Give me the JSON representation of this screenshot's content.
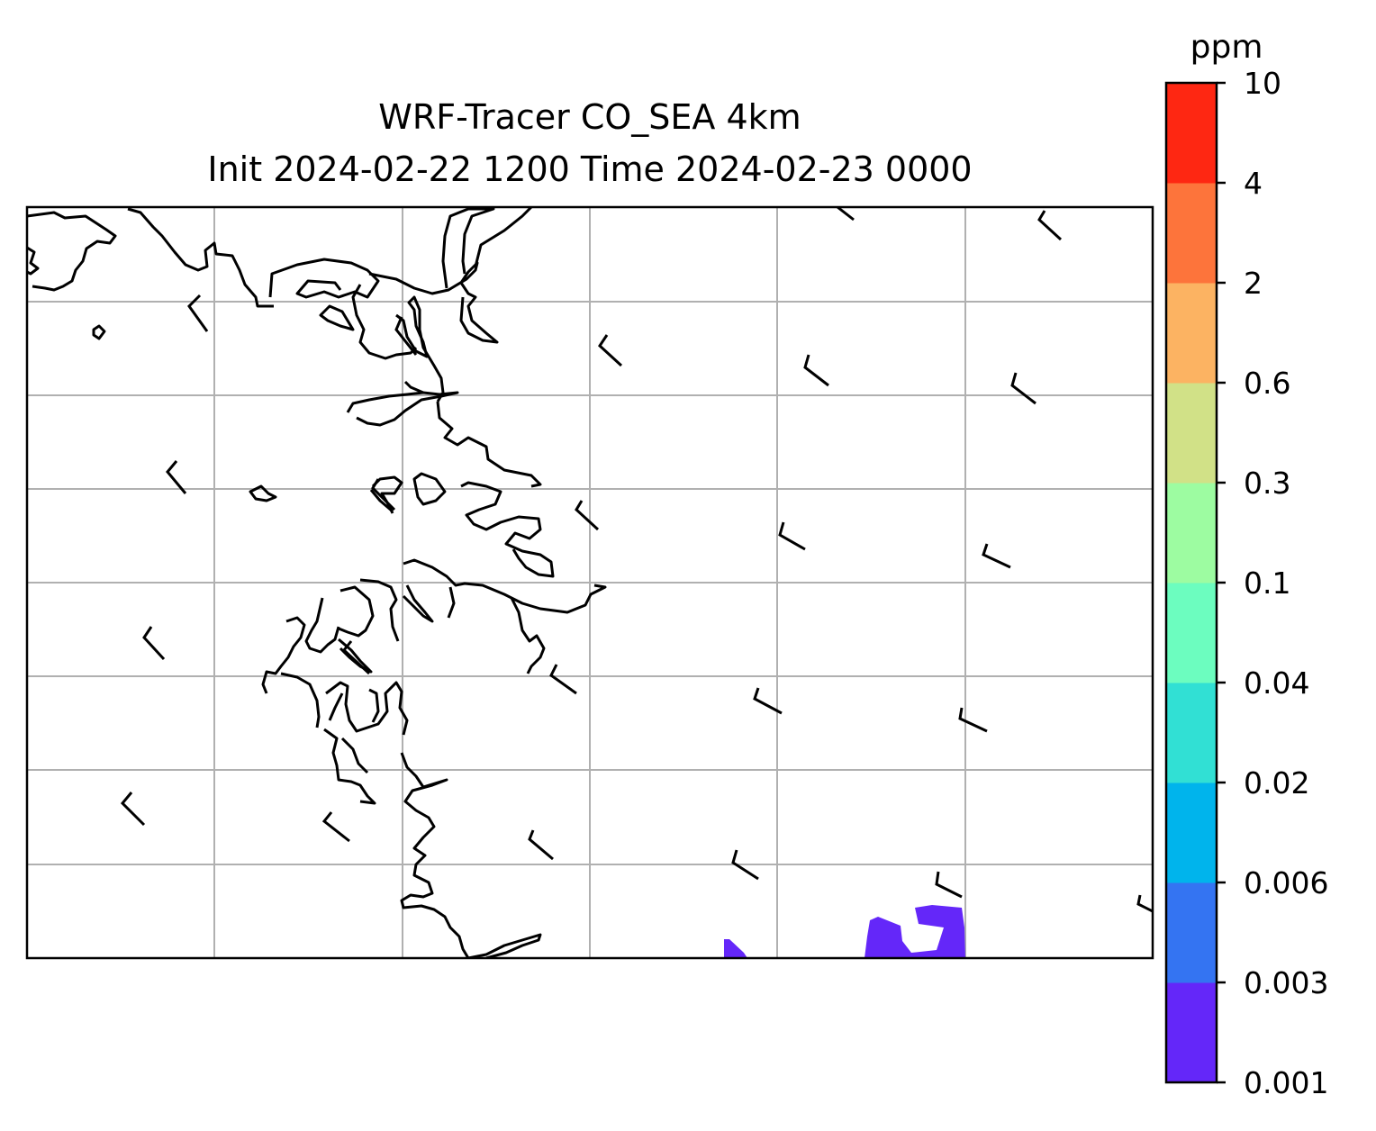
{
  "title": {
    "line1": "WRF-Tracer CO_SEA 4km",
    "line2": "Init 2024-02-22 1200 Time 2024-02-23 0000"
  },
  "colorbar": {
    "unit": "ppm",
    "levels": [
      "0.001",
      "0.003",
      "0.006",
      "0.02",
      "0.04",
      "0.1",
      "0.3",
      "0.6",
      "2",
      "4",
      "10"
    ],
    "colors": [
      "#6427f9",
      "#3474f2",
      "#00b4ec",
      "#31e0d4",
      "#6cfdbf",
      "#9dfca1",
      "#d1e187",
      "#fcb362",
      "#fd743b",
      "#fe2712"
    ]
  },
  "map": {
    "gridlines": true,
    "coastline_color": "#000000",
    "grid_color": "#b0b0b0",
    "tracer_fill_color": "#6427f9"
  }
}
